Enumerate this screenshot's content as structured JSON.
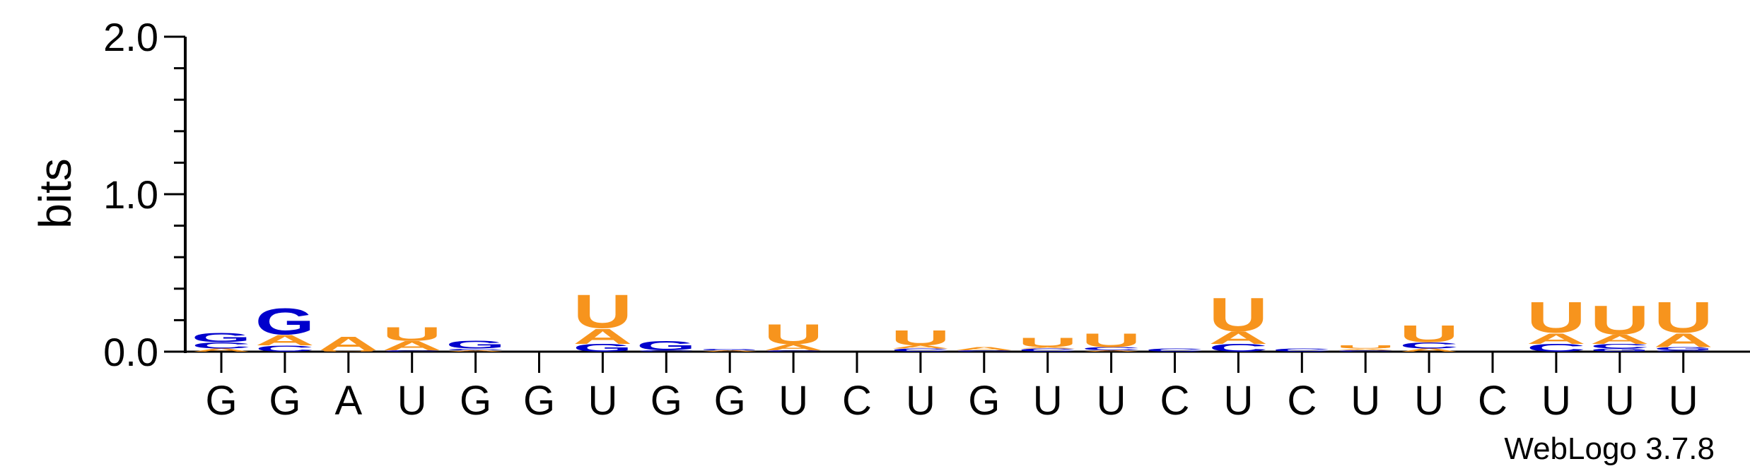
{
  "chart_data": {
    "type": "sequence-logo",
    "ylabel": "bits",
    "ylim": [
      0,
      2.0
    ],
    "yticks": [
      "0.0",
      "1.0",
      "2.0"
    ],
    "colors": {
      "A": "#F7941D",
      "U": "#F7941D",
      "G": "#0000CC",
      "C": "#0000CC"
    },
    "credit": "WebLogo 3.7.8",
    "positions": [
      {
        "label": "G",
        "stack": [
          {
            "letter": "A",
            "bits": 0.02
          },
          {
            "letter": "C",
            "bits": 0.04
          },
          {
            "letter": "G",
            "bits": 0.06
          }
        ]
      },
      {
        "label": "G",
        "stack": [
          {
            "letter": "C",
            "bits": 0.04
          },
          {
            "letter": "A",
            "bits": 0.07
          },
          {
            "letter": "G",
            "bits": 0.17
          }
        ]
      },
      {
        "label": "A",
        "stack": [
          {
            "letter": "U",
            "bits": 0.01
          },
          {
            "letter": "A",
            "bits": 0.09
          }
        ]
      },
      {
        "label": "U",
        "stack": [
          {
            "letter": "C",
            "bits": 0.01
          },
          {
            "letter": "A",
            "bits": 0.06
          },
          {
            "letter": "U",
            "bits": 0.09
          }
        ]
      },
      {
        "label": "G",
        "stack": [
          {
            "letter": "A",
            "bits": 0.01
          },
          {
            "letter": "C",
            "bits": 0.01
          },
          {
            "letter": "G",
            "bits": 0.05
          }
        ]
      },
      {
        "label": "G",
        "stack": []
      },
      {
        "label": "U",
        "stack": [
          {
            "letter": "G",
            "bits": 0.05
          },
          {
            "letter": "A",
            "bits": 0.1
          },
          {
            "letter": "U",
            "bits": 0.22
          }
        ]
      },
      {
        "label": "G",
        "stack": [
          {
            "letter": "C",
            "bits": 0.01
          },
          {
            "letter": "G",
            "bits": 0.06
          }
        ]
      },
      {
        "label": "G",
        "stack": [
          {
            "letter": "A",
            "bits": 0.01
          },
          {
            "letter": "G",
            "bits": 0.01
          }
        ]
      },
      {
        "label": "U",
        "stack": [
          {
            "letter": "C",
            "bits": 0.01
          },
          {
            "letter": "A",
            "bits": 0.04
          },
          {
            "letter": "U",
            "bits": 0.13
          }
        ]
      },
      {
        "label": "C",
        "stack": []
      },
      {
        "label": "U",
        "stack": [
          {
            "letter": "C",
            "bits": 0.02
          },
          {
            "letter": "A",
            "bits": 0.02
          },
          {
            "letter": "U",
            "bits": 0.1
          }
        ]
      },
      {
        "label": "G",
        "stack": [
          {
            "letter": "C",
            "bits": 0.01
          },
          {
            "letter": "A",
            "bits": 0.02
          }
        ]
      },
      {
        "label": "U",
        "stack": [
          {
            "letter": "C",
            "bits": 0.02
          },
          {
            "letter": "A",
            "bits": 0.01
          },
          {
            "letter": "U",
            "bits": 0.06
          }
        ]
      },
      {
        "label": "U",
        "stack": [
          {
            "letter": "A",
            "bits": 0.01
          },
          {
            "letter": "C",
            "bits": 0.02
          },
          {
            "letter": "U",
            "bits": 0.09
          }
        ]
      },
      {
        "label": "C",
        "stack": [
          {
            "letter": "C",
            "bits": 0.02
          }
        ]
      },
      {
        "label": "U",
        "stack": [
          {
            "letter": "C",
            "bits": 0.05
          },
          {
            "letter": "A",
            "bits": 0.08
          },
          {
            "letter": "U",
            "bits": 0.22
          }
        ]
      },
      {
        "label": "C",
        "stack": [
          {
            "letter": "C",
            "bits": 0.02
          }
        ]
      },
      {
        "label": "U",
        "stack": [
          {
            "letter": "C",
            "bits": 0.01
          },
          {
            "letter": "A",
            "bits": 0.01
          },
          {
            "letter": "U",
            "bits": 0.02
          }
        ]
      },
      {
        "label": "U",
        "stack": [
          {
            "letter": "A",
            "bits": 0.02
          },
          {
            "letter": "C",
            "bits": 0.04
          },
          {
            "letter": "U",
            "bits": 0.11
          }
        ]
      },
      {
        "label": "C",
        "stack": []
      },
      {
        "label": "U",
        "stack": [
          {
            "letter": "C",
            "bits": 0.05
          },
          {
            "letter": "A",
            "bits": 0.07
          },
          {
            "letter": "U",
            "bits": 0.2
          }
        ]
      },
      {
        "label": "U",
        "stack": [
          {
            "letter": "G",
            "bits": 0.02
          },
          {
            "letter": "C",
            "bits": 0.03
          },
          {
            "letter": "A",
            "bits": 0.06
          },
          {
            "letter": "U",
            "bits": 0.19
          }
        ]
      },
      {
        "label": "U",
        "stack": [
          {
            "letter": "C",
            "bits": 0.01
          },
          {
            "letter": "G",
            "bits": 0.02
          },
          {
            "letter": "A",
            "bits": 0.09
          },
          {
            "letter": "U",
            "bits": 0.2
          }
        ]
      }
    ]
  }
}
